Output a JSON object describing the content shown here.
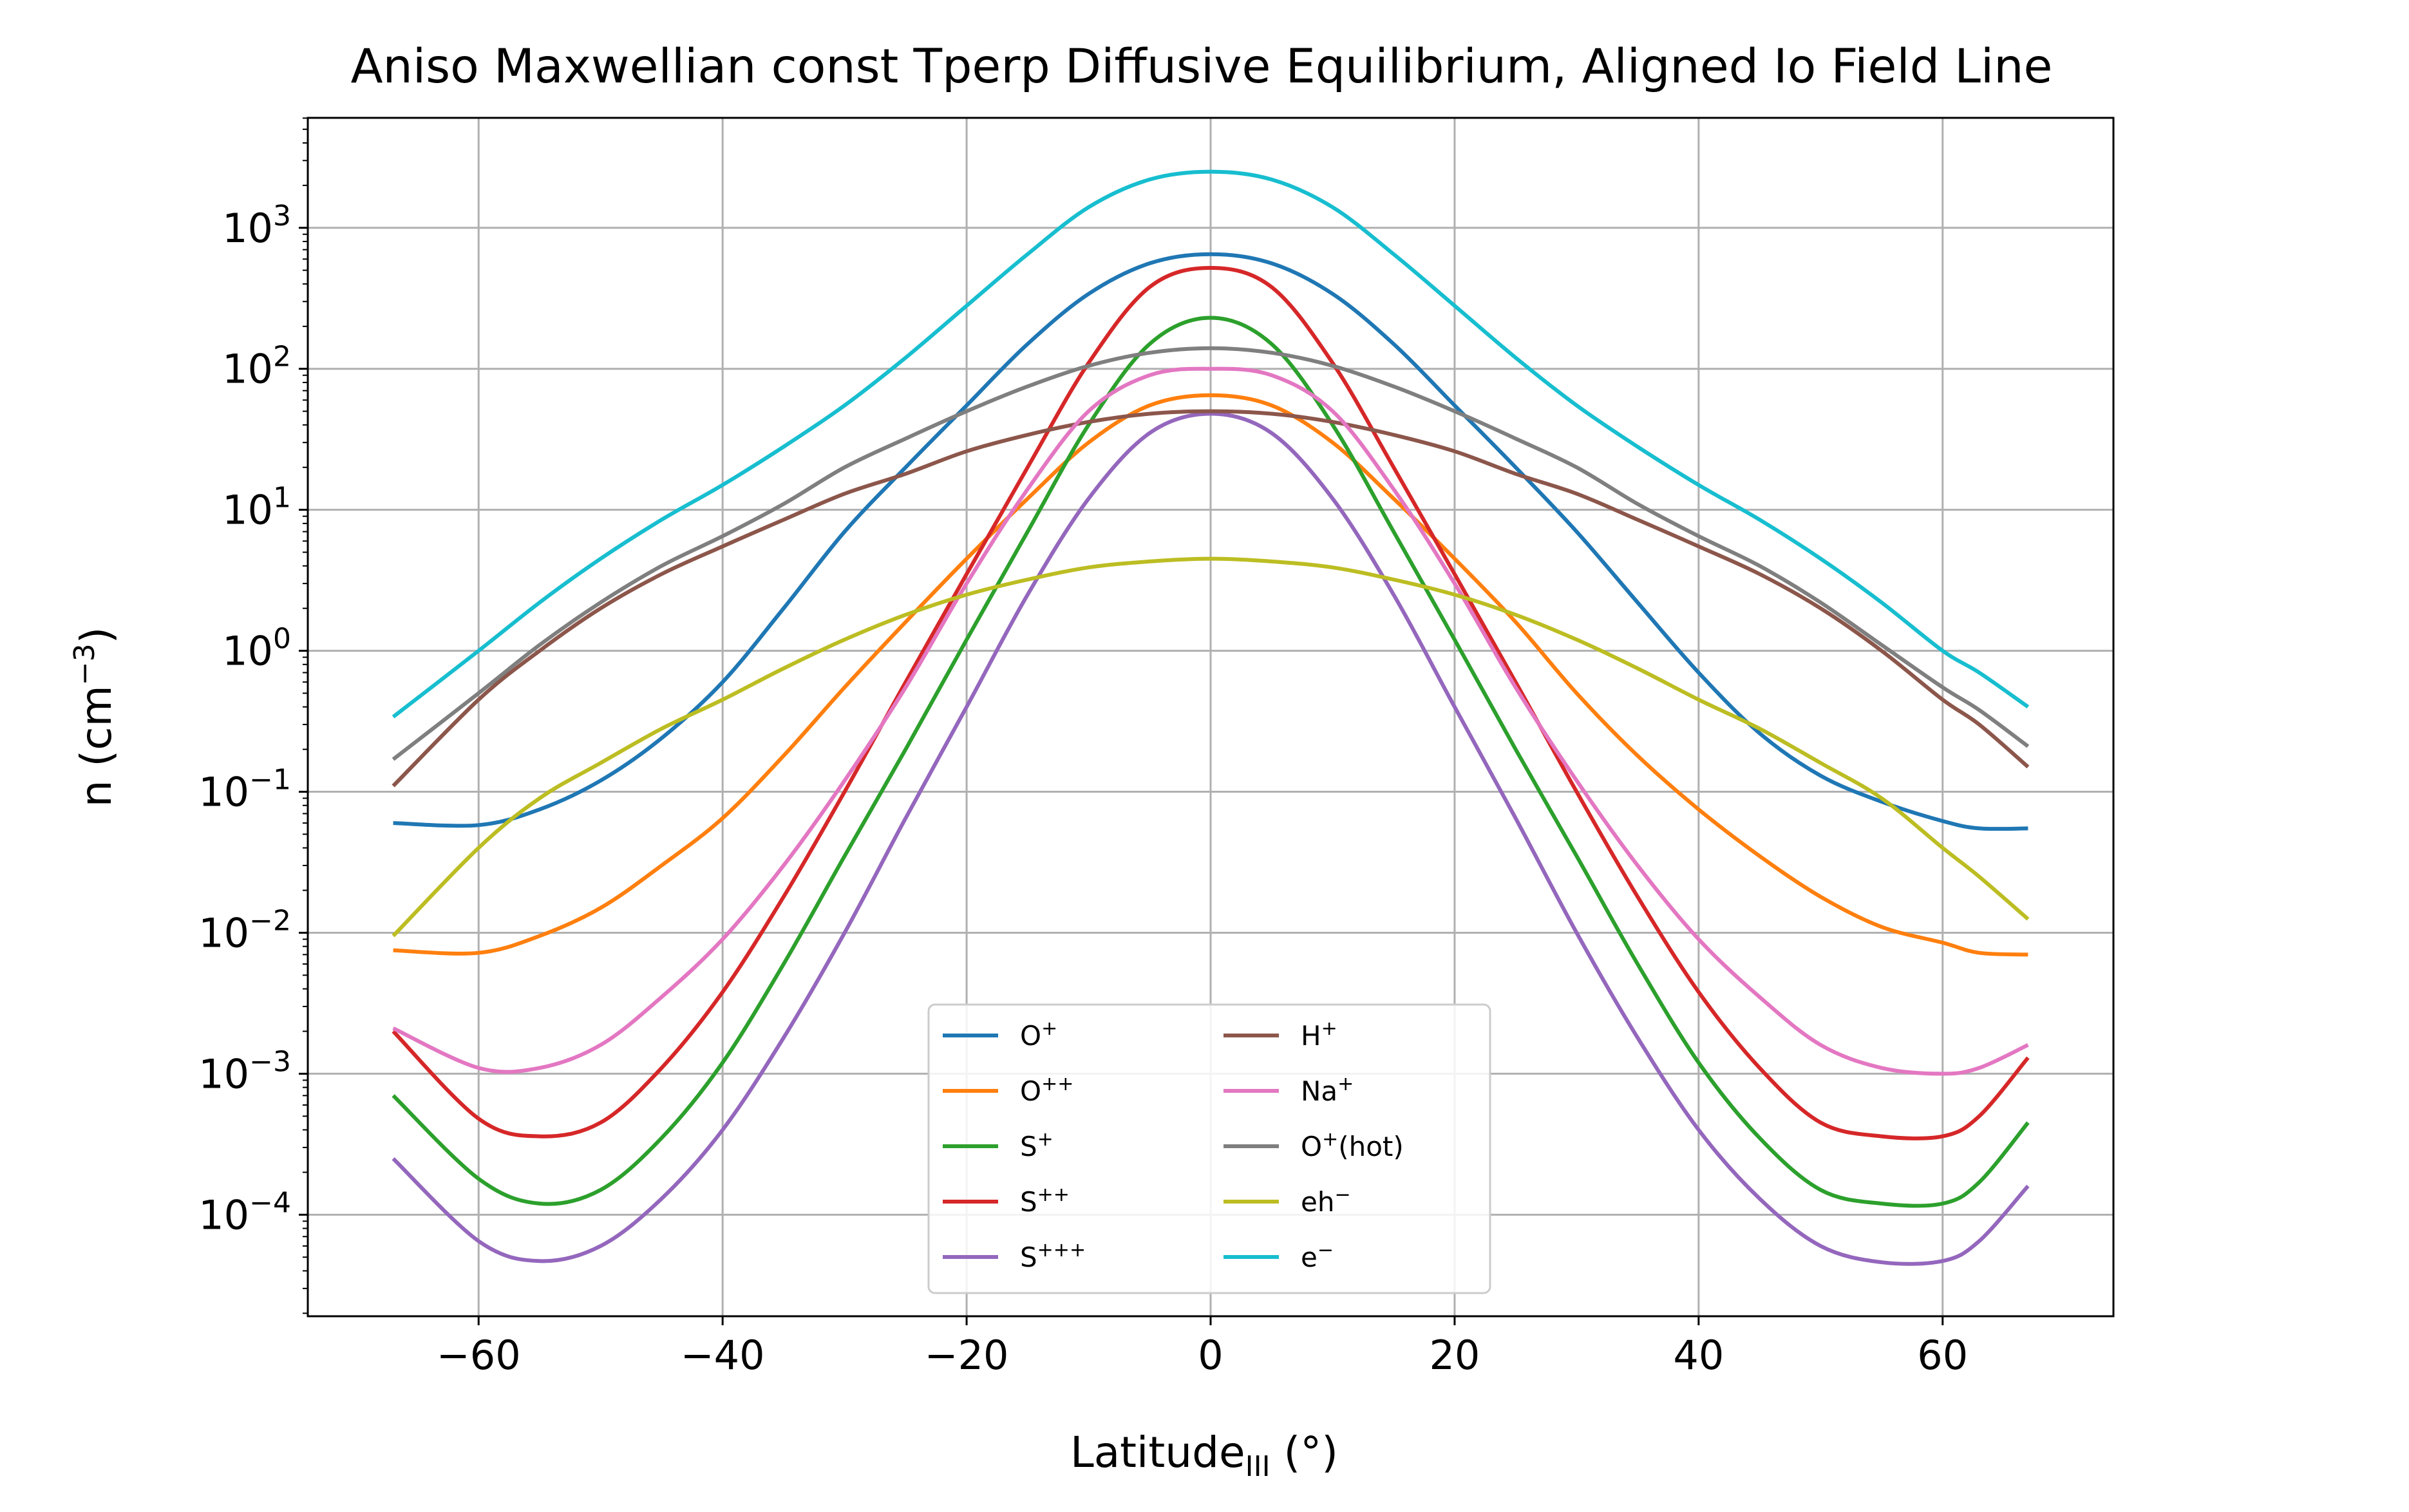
{
  "chart_data": {
    "type": "line",
    "title": "Aniso Maxwellian const Tperp Diffusive Equilibrium, Aligned Io Field Line",
    "xlabel": {
      "base": "Latitude",
      "sub": "III",
      "suffix": " (°)"
    },
    "ylabel": {
      "base": "n (cm",
      "sup": "−3",
      "suffix": ")"
    },
    "xlim": [
      -74,
      74
    ],
    "ylim_log10": [
      -4.72,
      3.78
    ],
    "yscale": "log",
    "grid": true,
    "legend": {
      "placement": "lower center",
      "columns": 2
    },
    "x_ticks": [
      {
        "value": -60,
        "label": "−60"
      },
      {
        "value": -40,
        "label": "−40"
      },
      {
        "value": -20,
        "label": "−20"
      },
      {
        "value": 0,
        "label": "0"
      },
      {
        "value": 20,
        "label": "20"
      },
      {
        "value": 40,
        "label": "40"
      },
      {
        "value": 60,
        "label": "60"
      }
    ],
    "y_ticks": [
      {
        "exp": -4,
        "base": "10",
        "sup": "−4"
      },
      {
        "exp": -3,
        "base": "10",
        "sup": "−3"
      },
      {
        "exp": -2,
        "base": "10",
        "sup": "−2"
      },
      {
        "exp": -1,
        "base": "10",
        "sup": "−1"
      },
      {
        "exp": 0,
        "base": "10",
        "sup": "0"
      },
      {
        "exp": 1,
        "base": "10",
        "sup": "1"
      },
      {
        "exp": 2,
        "base": "10",
        "sup": "2"
      },
      {
        "exp": 3,
        "base": "10",
        "sup": "3"
      }
    ],
    "x": [
      -67,
      -60,
      -55,
      -50,
      -45,
      -40,
      -35,
      -30,
      -25,
      -20,
      -15,
      -10,
      -5,
      0,
      5,
      10,
      15,
      20,
      25,
      30,
      35,
      40,
      45,
      50,
      55,
      60,
      63,
      67
    ],
    "series": [
      {
        "base": "O",
        "sup": "+",
        "color": "#1f77b4",
        "values": [
          0.06,
          0.058,
          0.075,
          0.12,
          0.24,
          0.6,
          2.0,
          7.0,
          20,
          55,
          150,
          340,
          560,
          650,
          560,
          340,
          150,
          55,
          20,
          7.0,
          2.2,
          0.7,
          0.26,
          0.13,
          0.085,
          0.062,
          0.055,
          0.055
        ]
      },
      {
        "base": "O",
        "sup": "++",
        "color": "#ff7f0e",
        "values": [
          0.0075,
          0.0072,
          0.0095,
          0.015,
          0.03,
          0.065,
          0.18,
          0.55,
          1.6,
          4.5,
          12,
          30,
          55,
          65,
          55,
          30,
          12,
          4.5,
          1.6,
          0.5,
          0.18,
          0.075,
          0.035,
          0.018,
          0.011,
          0.0085,
          0.0072,
          0.007
        ]
      },
      {
        "base": "S",
        "sup": "+",
        "color": "#2ca02c",
        "values": [
          0.0007,
          0.00018,
          0.00012,
          0.00015,
          0.00035,
          0.0012,
          0.006,
          0.035,
          0.2,
          1.2,
          7.0,
          40,
          150,
          230,
          150,
          40,
          7.0,
          1.2,
          0.2,
          0.035,
          0.006,
          0.0012,
          0.00035,
          0.00015,
          0.00012,
          0.00012,
          0.00017,
          0.00045
        ]
      },
      {
        "base": "S",
        "sup": "++",
        "color": "#d62728",
        "values": [
          0.002,
          0.00048,
          0.00036,
          0.00045,
          0.0011,
          0.0038,
          0.018,
          0.1,
          0.6,
          3.5,
          20,
          110,
          380,
          520,
          380,
          110,
          20,
          3.5,
          0.6,
          0.1,
          0.018,
          0.0038,
          0.0011,
          0.00045,
          0.00036,
          0.00036,
          0.0005,
          0.0013
        ]
      },
      {
        "base": "S",
        "sup": "+++",
        "color": "#9467bd",
        "values": [
          0.00025,
          6.5e-05,
          4.7e-05,
          6e-05,
          0.00013,
          0.0004,
          0.0018,
          0.01,
          0.065,
          0.4,
          2.5,
          12,
          35,
          48,
          35,
          12,
          2.5,
          0.4,
          0.065,
          0.01,
          0.0018,
          0.0004,
          0.00013,
          6e-05,
          4.6e-05,
          4.7e-05,
          6.5e-05,
          0.00016
        ]
      },
      {
        "base": "H",
        "sup": "+",
        "color": "#8c564b",
        "values": [
          0.11,
          0.45,
          1.0,
          2.0,
          3.5,
          5.5,
          8.5,
          13,
          18,
          26,
          34,
          42,
          48,
          50,
          48,
          42,
          34,
          26,
          18,
          13,
          8.5,
          5.5,
          3.5,
          2.0,
          1.0,
          0.45,
          0.3,
          0.15
        ]
      },
      {
        "base": "Na",
        "sup": "+",
        "color": "#e377c2",
        "values": [
          0.0021,
          0.0011,
          0.0011,
          0.0016,
          0.0035,
          0.009,
          0.03,
          0.12,
          0.55,
          3.0,
          14,
          50,
          90,
          100,
          90,
          50,
          14,
          3.0,
          0.55,
          0.12,
          0.03,
          0.009,
          0.0035,
          0.0016,
          0.0011,
          0.001,
          0.0011,
          0.0016
        ]
      },
      {
        "base": "O",
        "sup": "+",
        "suffix": "(hot)",
        "color": "#7f7f7f",
        "values": [
          0.17,
          0.5,
          1.1,
          2.2,
          4.0,
          6.5,
          11,
          20,
          32,
          50,
          75,
          105,
          130,
          140,
          130,
          105,
          75,
          50,
          32,
          20,
          11,
          6.5,
          4.0,
          2.2,
          1.1,
          0.55,
          0.38,
          0.21
        ]
      },
      {
        "base": "eh",
        "sup": "−",
        "color": "#bcbd22",
        "values": [
          0.0095,
          0.04,
          0.09,
          0.16,
          0.28,
          0.45,
          0.75,
          1.2,
          1.8,
          2.5,
          3.2,
          3.9,
          4.3,
          4.5,
          4.3,
          3.9,
          3.2,
          2.5,
          1.8,
          1.2,
          0.75,
          0.45,
          0.28,
          0.16,
          0.09,
          0.04,
          0.025,
          0.0125
        ]
      },
      {
        "base": "e",
        "sup": "−",
        "color": "#17becf",
        "values": [
          0.34,
          1.0,
          2.2,
          4.5,
          8.5,
          15,
          28,
          55,
          120,
          280,
          650,
          1400,
          2200,
          2500,
          2200,
          1400,
          650,
          280,
          120,
          55,
          28,
          15,
          8.5,
          4.5,
          2.2,
          1.0,
          0.7,
          0.4
        ]
      }
    ]
  }
}
